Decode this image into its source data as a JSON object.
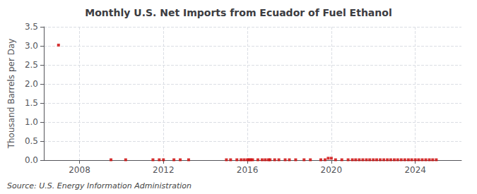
{
  "chart_data": {
    "type": "scatter",
    "title": "Monthly U.S. Net Imports from Ecuador of Fuel Ethanol",
    "ylabel": "Thousand Barrels per Day",
    "annotation": "Source: U.S. Energy Information Administration",
    "x": [
      2007.0,
      2009.5,
      2010.2,
      2011.5,
      2011.8,
      2012.0,
      2012.5,
      2012.8,
      2013.2,
      2015.0,
      2015.2,
      2015.5,
      2015.7,
      2015.85,
      2016.0,
      2016.08,
      2016.16,
      2016.25,
      2016.5,
      2016.7,
      2016.85,
      2017.0,
      2017.08,
      2017.3,
      2017.5,
      2017.8,
      2018.0,
      2018.3,
      2018.7,
      2019.0,
      2019.5,
      2019.7,
      2019.85,
      2020.0,
      2020.2,
      2020.5,
      2020.8,
      2021.0,
      2021.16,
      2021.33,
      2021.5,
      2021.67,
      2021.83,
      2022.0,
      2022.16,
      2022.33,
      2022.5,
      2022.67,
      2022.83,
      2023.0,
      2023.16,
      2023.33,
      2023.5,
      2023.67,
      2023.83,
      2024.0,
      2024.16,
      2024.33,
      2024.5,
      2024.67,
      2024.83,
      2025.0
    ],
    "values": [
      3.02,
      0.01,
      0.01,
      0.01,
      0.01,
      0.01,
      0.01,
      0.01,
      0.01,
      0.01,
      0.01,
      0.01,
      0.01,
      0.01,
      0.01,
      0.01,
      0.01,
      0.01,
      0.01,
      0.01,
      0.01,
      0.01,
      0.01,
      0.01,
      0.01,
      0.01,
      0.01,
      0.01,
      0.01,
      0.01,
      0.01,
      0.01,
      0.05,
      0.05,
      0.01,
      0.01,
      0.01,
      0.01,
      0.01,
      0.01,
      0.01,
      0.01,
      0.01,
      0.01,
      0.01,
      0.01,
      0.01,
      0.01,
      0.01,
      0.01,
      0.01,
      0.01,
      0.01,
      0.01,
      0.01,
      0.01,
      0.01,
      0.01,
      0.01,
      0.01,
      0.01,
      0.01
    ],
    "color": "#cc0000",
    "marker": "square",
    "xlim": [
      2006.3,
      2026.2
    ],
    "xticks": [
      2008,
      2012,
      2016,
      2020,
      2024
    ],
    "ylim": [
      0,
      3.5
    ],
    "yticks": [
      {
        "value": 0.0,
        "label": "0.0"
      },
      0.5,
      {
        "value": 1.0,
        "label": "1.0"
      },
      1.5,
      {
        "value": 2.0,
        "label": "2.0"
      },
      2.5,
      {
        "value": 3.0,
        "label": "3.0"
      },
      3.5
    ],
    "grid": true
  }
}
